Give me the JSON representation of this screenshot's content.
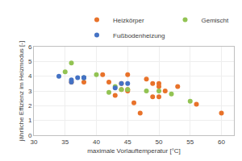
{
  "chart_data": {
    "type": "scatter",
    "xlabel": "maximale Vorlauftemperatur [°C]",
    "ylabel": "jährliche Effizienz im Heizmodus [-]",
    "series": [
      {
        "name": "Heizkörper",
        "color": "#E8722A",
        "x": [
          36,
          38,
          41,
          42,
          43,
          44,
          44,
          45,
          45,
          45,
          46,
          47,
          48,
          49,
          49,
          50,
          50,
          50,
          51,
          53,
          56,
          60
        ],
        "values": [
          3.6,
          3.6,
          4.1,
          3.6,
          2.7,
          3.5,
          3.1,
          4.1,
          3.1,
          3.0,
          2.2,
          1.5,
          3.8,
          3.5,
          2.6,
          3.5,
          2.6,
          3.3,
          3.0,
          3.3,
          2.1,
          1.5
        ]
      },
      {
        "name": "Gemischt",
        "color": "#92C353",
        "x": [
          35,
          36,
          38,
          40,
          42,
          43,
          44,
          45,
          48,
          50,
          52,
          55
        ],
        "values": [
          4.3,
          4.9,
          3.9,
          4.1,
          2.9,
          3.3,
          3.1,
          3.1,
          3.0,
          3.0,
          2.8,
          2.3
        ]
      },
      {
        "name": "Fußbodenheizung",
        "color": "#4472C4",
        "x": [
          34,
          36,
          36,
          37,
          38,
          38,
          43,
          44,
          45
        ],
        "values": [
          4.0,
          3.6,
          3.75,
          3.9,
          3.9,
          3.9,
          3.2,
          3.5,
          3.5
        ]
      }
    ],
    "xlim": [
      30,
      62
    ],
    "ylim": [
      0,
      6
    ],
    "xticks": [
      30,
      35,
      40,
      45,
      50,
      55,
      60
    ],
    "yticks": [
      0,
      1,
      2,
      3,
      4,
      5,
      6
    ],
    "grid": true,
    "legend": "upper right"
  }
}
